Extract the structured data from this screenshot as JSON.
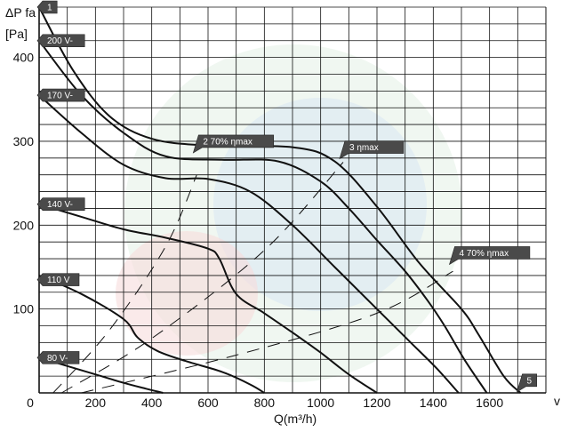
{
  "chart_data": {
    "type": "line",
    "ylabel_line1": "ΔP fa",
    "ylabel_line2": "[Pa]",
    "xlabel": "Q(m³/h)",
    "x_end_label": "v",
    "xlim": [
      0,
      1800
    ],
    "ylim": [
      0,
      460
    ],
    "x_ticks": [
      0,
      200,
      400,
      600,
      800,
      1000,
      1200,
      1400,
      1600
    ],
    "y_ticks": [
      100,
      200,
      300,
      400
    ],
    "grid": true,
    "series": [
      {
        "name": "1",
        "points": [
          [
            0,
            460
          ],
          [
            120,
            385
          ],
          [
            250,
            330
          ],
          [
            400,
            303
          ],
          [
            600,
            295
          ],
          [
            900,
            293
          ],
          [
            1050,
            276
          ],
          [
            1200,
            222
          ],
          [
            1350,
            155
          ],
          [
            1500,
            100
          ],
          [
            1560,
            70
          ],
          [
            1650,
            20
          ],
          [
            1710,
            0
          ]
        ]
      },
      {
        "name": "200 V-",
        "points": [
          [
            0,
            420
          ],
          [
            150,
            355
          ],
          [
            300,
            310
          ],
          [
            450,
            282
          ],
          [
            650,
            278
          ],
          [
            850,
            276
          ],
          [
            1000,
            252
          ],
          [
            1100,
            220
          ],
          [
            1200,
            182
          ],
          [
            1300,
            145
          ],
          [
            1380,
            110
          ],
          [
            1440,
            80
          ],
          [
            1510,
            40
          ],
          [
            1590,
            0
          ]
        ]
      },
      {
        "name": "170 V-",
        "points": [
          [
            0,
            355
          ],
          [
            150,
            310
          ],
          [
            300,
            272
          ],
          [
            450,
            256
          ],
          [
            600,
            255
          ],
          [
            750,
            240
          ],
          [
            900,
            200
          ],
          [
            1050,
            150
          ],
          [
            1200,
            100
          ],
          [
            1320,
            60
          ],
          [
            1410,
            30
          ],
          [
            1490,
            0
          ]
        ]
      },
      {
        "name": "140 V-",
        "points": [
          [
            0,
            225
          ],
          [
            150,
            210
          ],
          [
            300,
            195
          ],
          [
            450,
            185
          ],
          [
            600,
            172
          ],
          [
            640,
            160
          ],
          [
            700,
            118
          ],
          [
            800,
            95
          ],
          [
            900,
            72
          ],
          [
            1000,
            48
          ],
          [
            1100,
            22
          ],
          [
            1200,
            0
          ]
        ]
      },
      {
        "name": "110 V",
        "points": [
          [
            0,
            140
          ],
          [
            150,
            118
          ],
          [
            300,
            88
          ],
          [
            350,
            66
          ],
          [
            420,
            50
          ],
          [
            520,
            38
          ],
          [
            650,
            25
          ],
          [
            750,
            10
          ],
          [
            800,
            0
          ]
        ]
      },
      {
        "name": "80 V-",
        "points": [
          [
            0,
            42
          ],
          [
            100,
            32
          ],
          [
            200,
            22
          ],
          [
            300,
            12
          ],
          [
            380,
            5
          ],
          [
            440,
            0
          ]
        ]
      }
    ],
    "efficiency_lines": [
      {
        "name": "70% ηmax",
        "points": [
          [
            50,
            0
          ],
          [
            250,
            75
          ],
          [
            450,
            175
          ],
          [
            560,
            260
          ]
        ]
      },
      {
        "name": "ηmax",
        "points": [
          [
            80,
            0
          ],
          [
            400,
            65
          ],
          [
            800,
            170
          ],
          [
            1080,
            275
          ]
        ]
      },
      {
        "name": "70% ηmax",
        "points": [
          [
            150,
            0
          ],
          [
            700,
            45
          ],
          [
            1200,
            95
          ],
          [
            1470,
            145
          ]
        ]
      }
    ],
    "tags": [
      {
        "text": "1",
        "x": 0,
        "y": 460
      },
      {
        "text": "200 V-",
        "x": 0,
        "y": 420
      },
      {
        "text": "170 V-",
        "x": 0,
        "y": 355
      },
      {
        "text": "140 V-",
        "x": 0,
        "y": 225
      },
      {
        "text": "110 V",
        "x": 0,
        "y": 135
      },
      {
        "text": "80 V-",
        "x": 0,
        "y": 42
      },
      {
        "text": "2   70% ηmax",
        "x": 560,
        "y": 300
      },
      {
        "text": "3    ηmax",
        "x": 1080,
        "y": 293
      },
      {
        "text": "4   70% ηmax",
        "x": 1470,
        "y": 167
      },
      {
        "text": "5",
        "x": 1710,
        "y": 15
      }
    ]
  }
}
